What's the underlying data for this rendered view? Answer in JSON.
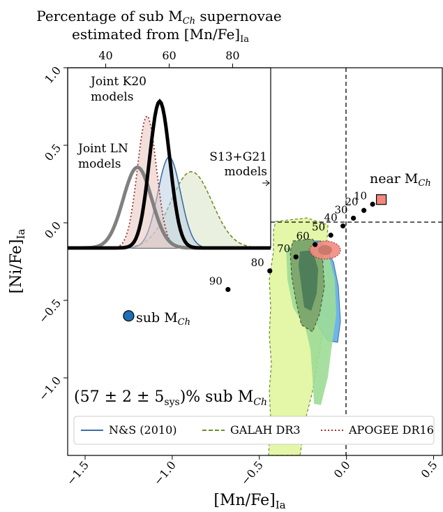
{
  "figure": {
    "top_title_line1": "Percentage of sub M",
    "top_title_sub": "Ch",
    "top_title_line1_end": " supernovae",
    "top_title_line2": "estimated from [Mn/Fe]",
    "top_title_line2_sub": "Ia",
    "xlabel_main": "[Mn/Fe]",
    "xlabel_sub": "Ia",
    "ylabel_main": "[Ni/Fe]",
    "ylabel_sub": "Ia",
    "annotation_result": "(57 ± 2 ± 5",
    "annotation_result_sub": "sys",
    "annotation_result_end": ")% sub M",
    "annotation_result_end_sub": "Ch",
    "near_mch_label": "near M",
    "near_mch_sub": "Ch",
    "sub_mch_label": "sub M",
    "sub_mch_sub": "Ch",
    "inset_k20_line1": "Joint K20",
    "inset_k20_line2": "models",
    "inset_ln_line1": "Joint LN",
    "inset_ln_line2": "models",
    "inset_s13_line1": "S13+G21",
    "inset_s13_line2": "models"
  },
  "chart_data": [
    {
      "type": "scatter",
      "name": "main",
      "xlim": [
        -1.6,
        0.55
      ],
      "ylim": [
        -1.5,
        1.0
      ],
      "xticks": [
        "−1.5",
        "−1.0",
        "−0.5",
        "0.0",
        "0.5"
      ],
      "xtick_values": [
        -1.5,
        -1.0,
        -0.5,
        0.0,
        0.5
      ],
      "yticks": [
        "1.0",
        "0.5",
        "0.0",
        "−0.5",
        "−1.0"
      ],
      "ytick_values": [
        1.0,
        0.5,
        0.0,
        -0.5,
        -1.0
      ],
      "top_xticks": [
        "40",
        "60",
        "80"
      ],
      "reference_lines": {
        "x": 0.0,
        "y": 0.0
      },
      "model_points": [
        {
          "label": "10",
          "x": 0.15,
          "y": 0.12
        },
        {
          "label": "20",
          "x": 0.1,
          "y": 0.08
        },
        {
          "label": "30",
          "x": 0.04,
          "y": 0.03
        },
        {
          "label": "40",
          "x": -0.02,
          "y": -0.02
        },
        {
          "label": "50",
          "x": -0.09,
          "y": -0.08
        },
        {
          "label": "60",
          "x": -0.18,
          "y": -0.14
        },
        {
          "label": "70",
          "x": -0.29,
          "y": -0.22
        },
        {
          "label": "80",
          "x": -0.44,
          "y": -0.31
        },
        {
          "label": "90",
          "x": -0.68,
          "y": -0.43
        }
      ],
      "near_mch_marker": {
        "x": 0.2,
        "y": 0.15,
        "color": "#f4877e"
      },
      "sub_mch_marker": {
        "x": -1.25,
        "y": -0.6,
        "color": "#1f6fb4"
      },
      "legend": [
        {
          "name": "N&S (2010)",
          "style": "solid",
          "color": "#3a6ea5"
        },
        {
          "name": "GALAH DR3",
          "style": "dashed",
          "color": "#6b8e23"
        },
        {
          "name": "APOGEE DR16",
          "style": "dotted",
          "color": "#a0302a"
        }
      ],
      "legend_position": "lower center"
    },
    {
      "type": "line",
      "name": "inset",
      "xlim": [
        28,
        92
      ],
      "series": [
        {
          "name": "Joint K20 models",
          "color": "#000000",
          "peak_x": 57,
          "peak_height": 1.0
        },
        {
          "name": "Joint LN models",
          "color": "#808080",
          "peak_x": 50,
          "peak_height": 0.55
        },
        {
          "name": "N&S (2010)",
          "color": "#3a6ea5",
          "peak_x": 60,
          "peak_height": 0.62
        },
        {
          "name": "GALAH DR3",
          "color": "#6b8e23",
          "peak_x": 67,
          "peak_height": 0.52
        },
        {
          "name": "APOGEE DR16",
          "color": "#a0302a",
          "peak_x": 53,
          "peak_height": 0.9
        }
      ]
    }
  ]
}
